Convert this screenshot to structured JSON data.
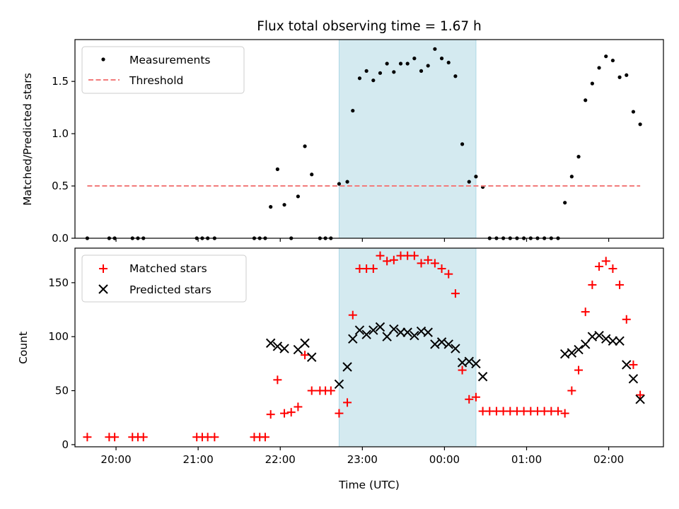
{
  "chart_data": [
    {
      "type": "scatter",
      "title": "Flux total observing time = 1.67 h",
      "xlabel": "",
      "ylabel": "Matched/Predicted stars",
      "x_unit": "time (UTC)",
      "xlim": [
        "19:30",
        "02:40"
      ],
      "ylim": [
        0,
        1.9
      ],
      "yticks": [
        0.0,
        0.5,
        1.0,
        1.5
      ],
      "ytick_labels": [
        "0.0",
        "0.5",
        "1.0",
        "1.5"
      ],
      "grid": false,
      "legend_position": "upper-left",
      "shaded_interval": {
        "start": "22:43",
        "end": "00:23",
        "color": "#d4eaf0"
      },
      "series": [
        {
          "name": "Measurements",
          "marker": "dot",
          "color": "#000000",
          "points": [
            [
              "19:39",
              0
            ],
            [
              "19:55",
              0
            ],
            [
              "19:59",
              0
            ],
            [
              "20:12",
              0
            ],
            [
              "20:16",
              0
            ],
            [
              "20:20",
              0
            ],
            [
              "20:59",
              0
            ],
            [
              "21:03",
              0
            ],
            [
              "21:07",
              0
            ],
            [
              "21:12",
              0
            ],
            [
              "21:41",
              0
            ],
            [
              "21:45",
              0
            ],
            [
              "21:49",
              0
            ],
            [
              "21:53",
              0.3
            ],
            [
              "21:58",
              0.66
            ],
            [
              "22:03",
              0.32
            ],
            [
              "22:08",
              0
            ],
            [
              "22:13",
              0.4
            ],
            [
              "22:18",
              0.88
            ],
            [
              "22:23",
              0.61
            ],
            [
              "22:29",
              0
            ],
            [
              "22:33",
              0
            ],
            [
              "22:37",
              0
            ],
            [
              "22:43",
              0.52
            ],
            [
              "22:49",
              0.54
            ],
            [
              "22:53",
              1.22
            ],
            [
              "22:58",
              1.53
            ],
            [
              "23:03",
              1.6
            ],
            [
              "23:08",
              1.51
            ],
            [
              "23:13",
              1.58
            ],
            [
              "23:18",
              1.67
            ],
            [
              "23:23",
              1.59
            ],
            [
              "23:28",
              1.67
            ],
            [
              "23:33",
              1.67
            ],
            [
              "23:38",
              1.72
            ],
            [
              "23:43",
              1.6
            ],
            [
              "23:48",
              1.65
            ],
            [
              "23:53",
              1.81
            ],
            [
              "23:58",
              1.72
            ],
            [
              "00:03",
              1.68
            ],
            [
              "00:08",
              1.55
            ],
            [
              "00:13",
              0.9
            ],
            [
              "00:18",
              0.54
            ],
            [
              "00:23",
              0.59
            ],
            [
              "00:28",
              0.49
            ],
            [
              "00:33",
              0
            ],
            [
              "00:38",
              0
            ],
            [
              "00:43",
              0
            ],
            [
              "00:48",
              0
            ],
            [
              "00:53",
              0
            ],
            [
              "00:58",
              0
            ],
            [
              "01:03",
              0
            ],
            [
              "01:08",
              0
            ],
            [
              "01:13",
              0
            ],
            [
              "01:18",
              0
            ],
            [
              "01:23",
              0
            ],
            [
              "01:28",
              0.34
            ],
            [
              "01:33",
              0.59
            ],
            [
              "01:38",
              0.78
            ],
            [
              "01:43",
              1.32
            ],
            [
              "01:48",
              1.48
            ],
            [
              "01:53",
              1.63
            ],
            [
              "01:58",
              1.74
            ],
            [
              "02:03",
              1.7
            ],
            [
              "02:08",
              1.54
            ],
            [
              "02:13",
              1.56
            ],
            [
              "02:18",
              1.21
            ],
            [
              "02:23",
              1.09
            ]
          ]
        },
        {
          "name": "Threshold",
          "style": "dashed-line",
          "color": "#f27b7b",
          "points": [
            [
              "19:39",
              0.5
            ],
            [
              "02:23",
              0.5
            ]
          ]
        }
      ]
    },
    {
      "type": "scatter",
      "title": "",
      "xlabel": "Time (UTC)",
      "ylabel": "Count",
      "xlim": [
        "19:30",
        "02:40"
      ],
      "ylim": [
        -2,
        182
      ],
      "yticks": [
        0,
        50,
        100,
        150
      ],
      "ytick_labels": [
        "0",
        "50",
        "100",
        "150"
      ],
      "xticks": [
        "20:00",
        "21:00",
        "22:00",
        "23:00",
        "00:00",
        "01:00",
        "02:00"
      ],
      "xtick_labels": [
        "20:00",
        "21:00",
        "22:00",
        "23:00",
        "00:00",
        "01:00",
        "02:00"
      ],
      "grid": false,
      "legend_position": "upper-left",
      "shaded_interval": {
        "start": "22:43",
        "end": "00:23",
        "color": "#d4eaf0"
      },
      "series": [
        {
          "name": "Matched stars",
          "marker": "plus",
          "color": "#ff0000",
          "points": [
            [
              "19:39",
              7
            ],
            [
              "19:55",
              7
            ],
            [
              "19:59",
              7
            ],
            [
              "20:12",
              7
            ],
            [
              "20:16",
              7
            ],
            [
              "20:20",
              7
            ],
            [
              "20:59",
              7
            ],
            [
              "21:03",
              7
            ],
            [
              "21:07",
              7
            ],
            [
              "21:12",
              7
            ],
            [
              "21:41",
              7
            ],
            [
              "21:45",
              7
            ],
            [
              "21:49",
              7
            ],
            [
              "21:53",
              28
            ],
            [
              "21:58",
              60
            ],
            [
              "22:03",
              29
            ],
            [
              "22:08",
              30
            ],
            [
              "22:13",
              35
            ],
            [
              "22:18",
              83
            ],
            [
              "22:23",
              50
            ],
            [
              "22:29",
              50
            ],
            [
              "22:33",
              50
            ],
            [
              "22:37",
              50
            ],
            [
              "22:43",
              29
            ],
            [
              "22:49",
              39
            ],
            [
              "22:53",
              120
            ],
            [
              "22:58",
              163
            ],
            [
              "23:03",
              163
            ],
            [
              "23:08",
              163
            ],
            [
              "23:13",
              175
            ],
            [
              "23:18",
              170
            ],
            [
              "23:23",
              171
            ],
            [
              "23:28",
              175
            ],
            [
              "23:33",
              175
            ],
            [
              "23:38",
              175
            ],
            [
              "23:43",
              168
            ],
            [
              "23:48",
              171
            ],
            [
              "23:53",
              168
            ],
            [
              "23:58",
              163
            ],
            [
              "00:03",
              158
            ],
            [
              "00:08",
              140
            ],
            [
              "00:13",
              69
            ],
            [
              "00:18",
              42
            ],
            [
              "00:23",
              44
            ],
            [
              "00:28",
              31
            ],
            [
              "00:33",
              31
            ],
            [
              "00:38",
              31
            ],
            [
              "00:43",
              31
            ],
            [
              "00:48",
              31
            ],
            [
              "00:53",
              31
            ],
            [
              "00:58",
              31
            ],
            [
              "01:03",
              31
            ],
            [
              "01:08",
              31
            ],
            [
              "01:13",
              31
            ],
            [
              "01:18",
              31
            ],
            [
              "01:23",
              31
            ],
            [
              "01:28",
              29
            ],
            [
              "01:33",
              50
            ],
            [
              "01:38",
              69
            ],
            [
              "01:43",
              123
            ],
            [
              "01:48",
              148
            ],
            [
              "01:53",
              165
            ],
            [
              "01:58",
              170
            ],
            [
              "02:03",
              163
            ],
            [
              "02:08",
              148
            ],
            [
              "02:13",
              116
            ],
            [
              "02:18",
              74
            ],
            [
              "02:23",
              46
            ]
          ]
        },
        {
          "name": "Predicted stars",
          "marker": "x",
          "color": "#000000",
          "points": [
            [
              "21:53",
              94
            ],
            [
              "21:58",
              91
            ],
            [
              "22:03",
              89
            ],
            [
              "22:13",
              88
            ],
            [
              "22:18",
              94
            ],
            [
              "22:23",
              81
            ],
            [
              "22:43",
              56
            ],
            [
              "22:49",
              72
            ],
            [
              "22:53",
              98
            ],
            [
              "22:58",
              106
            ],
            [
              "23:03",
              102
            ],
            [
              "23:08",
              106
            ],
            [
              "23:13",
              109
            ],
            [
              "23:18",
              100
            ],
            [
              "23:23",
              107
            ],
            [
              "23:28",
              104
            ],
            [
              "23:33",
              104
            ],
            [
              "23:38",
              101
            ],
            [
              "23:43",
              105
            ],
            [
              "23:48",
              104
            ],
            [
              "23:53",
              93
            ],
            [
              "23:58",
              95
            ],
            [
              "00:03",
              93
            ],
            [
              "00:08",
              89
            ],
            [
              "00:13",
              76
            ],
            [
              "00:18",
              77
            ],
            [
              "00:23",
              75
            ],
            [
              "00:28",
              63
            ],
            [
              "01:28",
              84
            ],
            [
              "01:33",
              85
            ],
            [
              "01:38",
              88
            ],
            [
              "01:43",
              93
            ],
            [
              "01:48",
              100
            ],
            [
              "01:53",
              101
            ],
            [
              "01:58",
              98
            ],
            [
              "02:03",
              96
            ],
            [
              "02:08",
              96
            ],
            [
              "02:13",
              74
            ],
            [
              "02:18",
              61
            ],
            [
              "02:23",
              42
            ]
          ]
        }
      ]
    }
  ]
}
